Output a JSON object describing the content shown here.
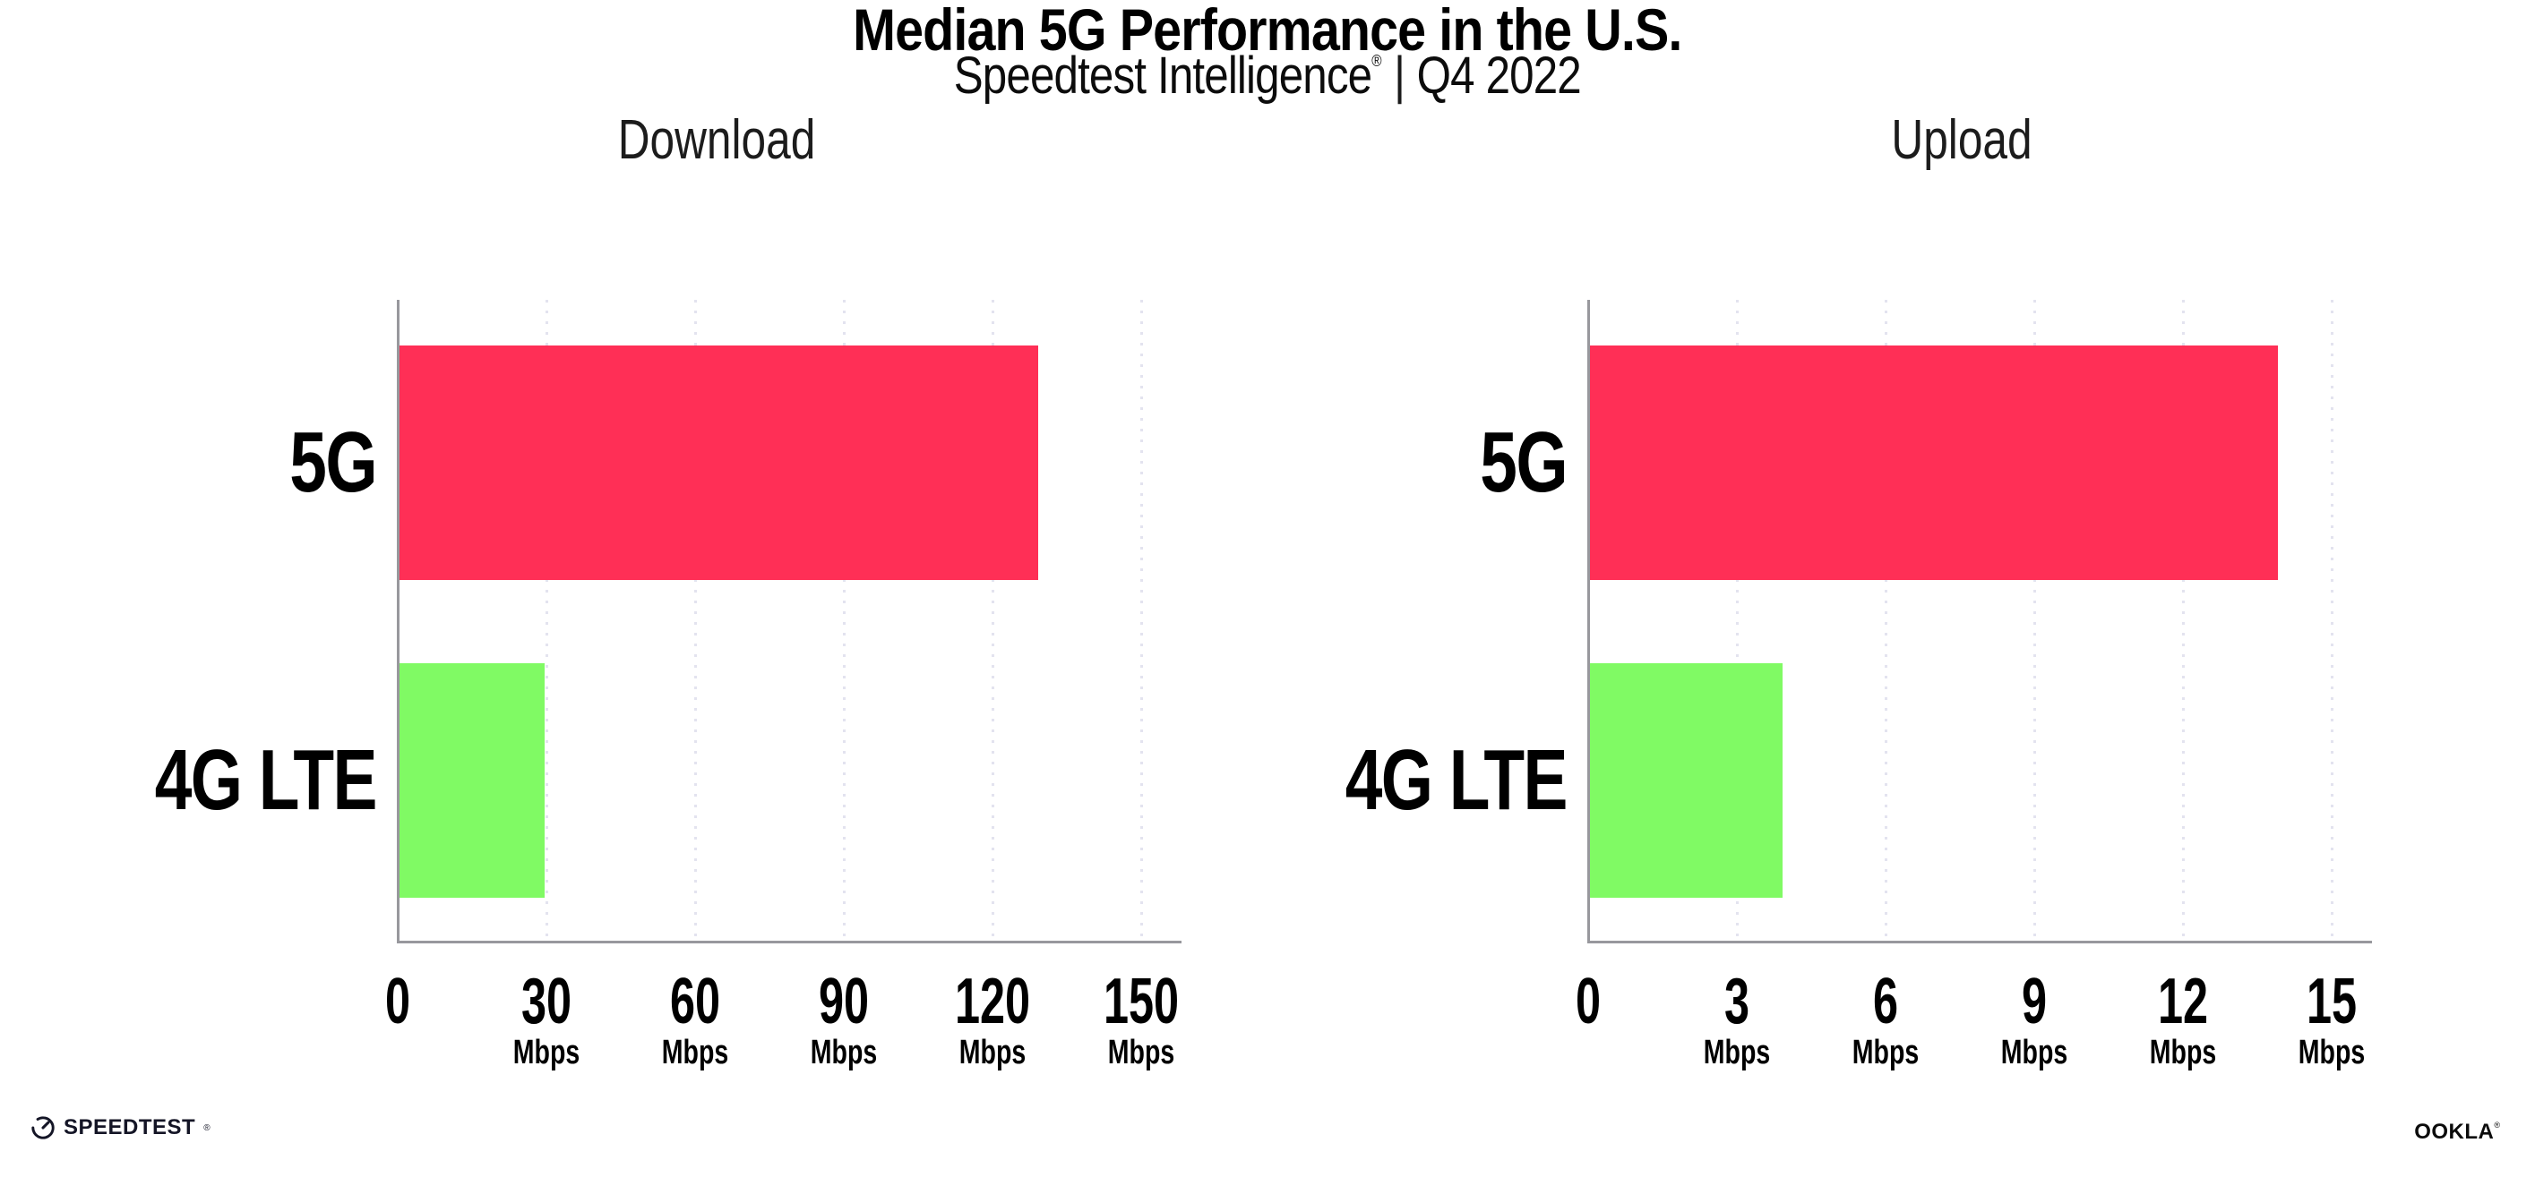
{
  "header": {
    "title": "Median 5G Performance in the U.S.",
    "subtitle_brand": "Speedtest Intelligence",
    "subtitle_reg": "®",
    "subtitle_separator": "|",
    "subtitle_period": "Q4 2022"
  },
  "chart_data": [
    {
      "type": "bar",
      "orientation": "horizontal",
      "title": "Download",
      "categories": [
        "5G",
        "4G LTE"
      ],
      "values": [
        129,
        29.4
      ],
      "unit": "Mbps",
      "xlabel": "",
      "ylabel": "",
      "xlim": [
        0,
        150
      ],
      "xticks": [
        0,
        30,
        60,
        90,
        120,
        150
      ],
      "bar_colors": [
        "#FF2F56",
        "#80FA64"
      ],
      "grid": "dotted vertical gridlines at each tick",
      "legend": "none"
    },
    {
      "type": "bar",
      "orientation": "horizontal",
      "title": "Upload",
      "categories": [
        "5G",
        "4G LTE"
      ],
      "values": [
        13.9,
        3.9
      ],
      "unit": "Mbps",
      "xlabel": "",
      "ylabel": "",
      "xlim": [
        0,
        15
      ],
      "xticks": [
        0,
        3,
        6,
        9,
        12,
        15
      ],
      "bar_colors": [
        "#FF2F56",
        "#80FA64"
      ],
      "grid": "dotted vertical gridlines at each tick",
      "legend": "none"
    }
  ],
  "footer": {
    "speedtest_logo": "SPEEDTEST",
    "speedtest_reg": "®",
    "ookla_logo": "OOKLA",
    "ookla_reg": "®"
  },
  "colors": {
    "bar_5g": "#FF2F56",
    "bar_4g_lte": "#80FA64",
    "axis_line": "#98989D",
    "gridline": "#E3E3EF",
    "text": "#000000",
    "logo_dark": "#141526"
  }
}
